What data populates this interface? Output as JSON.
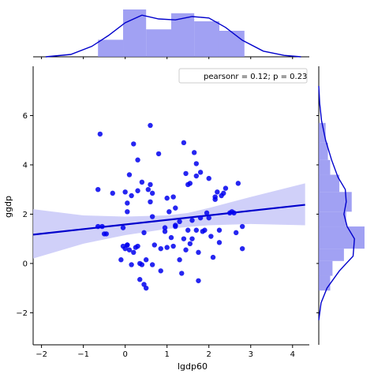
{
  "chart_data": {
    "type": "scatter",
    "xlabel": "lgdp60",
    "ylabel": "ggdp",
    "xlim": [
      -2.2,
      4.4
    ],
    "ylim": [
      -3.3,
      8.0
    ],
    "xticks": [
      -2,
      -1,
      0,
      1,
      2,
      3,
      4
    ],
    "yticks": [
      -2,
      0,
      2,
      4,
      6
    ],
    "legend_text": "pearsonr = 0.12; p = 0.23",
    "legend_position": "top-right",
    "colors": {
      "points": "#0000ee",
      "line": "#0000cc",
      "band": "#c8c8f8",
      "hist": "#8a8af0"
    },
    "points": [
      [
        -0.6,
        5.25
      ],
      [
        -0.65,
        3.0
      ],
      [
        -0.65,
        1.5
      ],
      [
        -0.55,
        1.5
      ],
      [
        -0.5,
        1.2
      ],
      [
        -0.45,
        1.2
      ],
      [
        -0.3,
        2.85
      ],
      [
        -0.1,
        0.15
      ],
      [
        -0.05,
        0.7
      ],
      [
        -0.05,
        1.45
      ],
      [
        0.0,
        2.9
      ],
      [
        0.0,
        0.6
      ],
      [
        0.05,
        0.75
      ],
      [
        0.05,
        0.75
      ],
      [
        0.05,
        2.1
      ],
      [
        0.05,
        2.45
      ],
      [
        0.1,
        3.6
      ],
      [
        0.1,
        0.55
      ],
      [
        0.15,
        2.75
      ],
      [
        0.15,
        -0.05
      ],
      [
        0.2,
        4.85
      ],
      [
        0.2,
        0.45
      ],
      [
        0.25,
        0.65
      ],
      [
        0.3,
        4.2
      ],
      [
        0.3,
        2.95
      ],
      [
        0.3,
        0.7
      ],
      [
        0.35,
        0.0
      ],
      [
        0.35,
        -0.65
      ],
      [
        0.4,
        3.3
      ],
      [
        0.4,
        -0.05
      ],
      [
        0.45,
        -0.85
      ],
      [
        0.45,
        1.25
      ],
      [
        0.5,
        0.15
      ],
      [
        0.5,
        -1.0
      ],
      [
        0.6,
        5.6
      ],
      [
        0.6,
        3.2
      ],
      [
        0.6,
        2.5
      ],
      [
        0.65,
        2.85
      ],
      [
        0.65,
        -0.05
      ],
      [
        0.65,
        1.9
      ],
      [
        0.8,
        4.45
      ],
      [
        0.85,
        0.6
      ],
      [
        0.85,
        -0.3
      ],
      [
        0.95,
        1.45
      ],
      [
        1.0,
        0.65
      ],
      [
        1.0,
        2.65
      ],
      [
        1.05,
        2.1
      ],
      [
        1.1,
        1.05
      ],
      [
        1.15,
        2.7
      ],
      [
        1.15,
        0.7
      ],
      [
        1.2,
        1.5
      ],
      [
        1.2,
        1.55
      ],
      [
        1.2,
        2.25
      ],
      [
        1.3,
        0.15
      ],
      [
        1.35,
        -0.4
      ],
      [
        1.4,
        4.9
      ],
      [
        1.4,
        1.0
      ],
      [
        1.45,
        3.65
      ],
      [
        1.45,
        0.55
      ],
      [
        1.5,
        1.35
      ],
      [
        1.5,
        3.2
      ],
      [
        1.55,
        3.25
      ],
      [
        1.55,
        0.8
      ],
      [
        1.6,
        1.75
      ],
      [
        1.65,
        4.5
      ],
      [
        1.7,
        1.35
      ],
      [
        1.7,
        3.55
      ],
      [
        1.7,
        4.05
      ],
      [
        1.75,
        0.45
      ],
      [
        1.75,
        -0.7
      ],
      [
        1.8,
        3.7
      ],
      [
        1.8,
        1.85
      ],
      [
        1.85,
        1.3
      ],
      [
        1.9,
        1.35
      ],
      [
        1.95,
        2.05
      ],
      [
        2.0,
        1.85
      ],
      [
        2.0,
        3.45
      ],
      [
        2.05,
        1.1
      ],
      [
        2.1,
        0.25
      ],
      [
        2.15,
        2.7
      ],
      [
        2.2,
        2.9
      ],
      [
        2.25,
        0.85
      ],
      [
        2.25,
        1.35
      ],
      [
        2.3,
        2.75
      ],
      [
        2.35,
        2.85
      ],
      [
        2.4,
        3.05
      ],
      [
        2.5,
        2.05
      ],
      [
        2.55,
        2.1
      ],
      [
        2.6,
        2.05
      ],
      [
        2.65,
        1.25
      ],
      [
        2.7,
        3.25
      ],
      [
        2.8,
        1.5
      ],
      [
        2.8,
        0.6
      ],
      [
        1.3,
        1.7
      ],
      [
        0.95,
        1.3
      ],
      [
        0.7,
        0.75
      ],
      [
        2.15,
        2.6
      ],
      [
        0.55,
        3.0
      ],
      [
        1.6,
        1.0
      ]
    ],
    "regression": {
      "x": [
        -2.2,
        4.3
      ],
      "y": [
        1.17,
        2.38
      ]
    },
    "ci_band": {
      "x": [
        -2.2,
        -1.0,
        0.0,
        1.0,
        1.5,
        2.0,
        3.0,
        4.3
      ],
      "lower": [
        0.2,
        0.8,
        1.15,
        1.4,
        1.48,
        1.55,
        1.6,
        1.55
      ],
      "upper": [
        2.2,
        1.95,
        1.9,
        1.95,
        2.05,
        2.25,
        2.7,
        3.25
      ]
    },
    "marginal_x": {
      "bins": [
        -0.65,
        -0.05,
        0.5,
        1.1,
        1.65,
        2.25,
        2.85
      ],
      "heights": [
        0.36,
        1.0,
        0.58,
        0.92,
        0.75,
        0.55
      ],
      "kde_x": [
        -1.9,
        -1.3,
        -0.8,
        -0.4,
        0.0,
        0.4,
        0.8,
        1.2,
        1.6,
        2.0,
        2.4,
        2.8,
        3.3,
        3.8,
        4.2
      ],
      "kde_y": [
        0.0,
        0.05,
        0.22,
        0.45,
        0.72,
        0.88,
        0.8,
        0.78,
        0.85,
        0.82,
        0.62,
        0.35,
        0.12,
        0.03,
        0.0
      ]
    },
    "marginal_y": {
      "bins": [
        -1.1,
        -0.5,
        0.1,
        0.6,
        1.5,
        2.1,
        2.9,
        3.6,
        4.2,
        4.9,
        5.7
      ],
      "heights": [
        0.25,
        0.3,
        0.55,
        1.0,
        0.6,
        0.72,
        0.45,
        0.25,
        0.2,
        0.15
      ],
      "kde_y": [
        -2.3,
        -1.6,
        -1.0,
        -0.3,
        0.3,
        1.0,
        1.5,
        2.0,
        2.5,
        3.0,
        3.5,
        4.2,
        5.0,
        5.8,
        6.5,
        7.2
      ],
      "kde_x": [
        0.0,
        0.05,
        0.18,
        0.45,
        0.75,
        0.78,
        0.62,
        0.55,
        0.6,
        0.58,
        0.42,
        0.28,
        0.15,
        0.06,
        0.02,
        0.0
      ]
    }
  }
}
